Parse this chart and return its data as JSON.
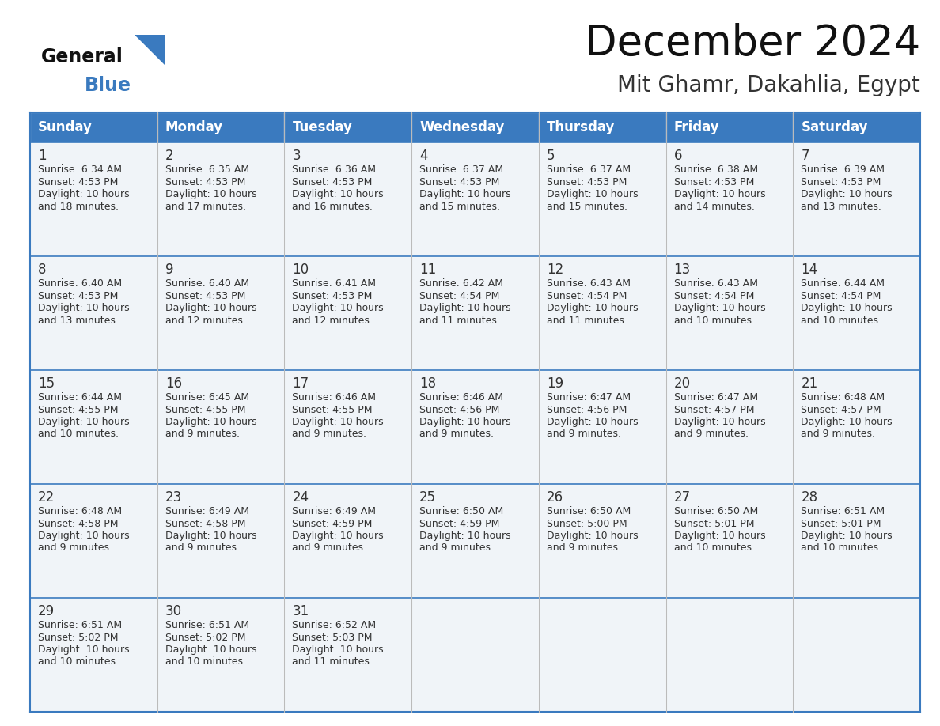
{
  "title": "December 2024",
  "subtitle": "Mit Ghamr, Dakahlia, Egypt",
  "header_color": "#3a7abf",
  "header_text_color": "#ffffff",
  "cell_bg_light": "#f0f4f8",
  "cell_bg_white": "#ffffff",
  "day_number_color": "#333333",
  "info_text_color": "#333333",
  "border_color": "#2e5f8a",
  "separator_color": "#3a7abf",
  "days_of_week": [
    "Sunday",
    "Monday",
    "Tuesday",
    "Wednesday",
    "Thursday",
    "Friday",
    "Saturday"
  ],
  "weeks": [
    [
      {
        "day": 1,
        "sunrise": "6:34 AM",
        "sunset": "4:53 PM",
        "daylight_hours": 10,
        "daylight_minutes": 18
      },
      {
        "day": 2,
        "sunrise": "6:35 AM",
        "sunset": "4:53 PM",
        "daylight_hours": 10,
        "daylight_minutes": 17
      },
      {
        "day": 3,
        "sunrise": "6:36 AM",
        "sunset": "4:53 PM",
        "daylight_hours": 10,
        "daylight_minutes": 16
      },
      {
        "day": 4,
        "sunrise": "6:37 AM",
        "sunset": "4:53 PM",
        "daylight_hours": 10,
        "daylight_minutes": 15
      },
      {
        "day": 5,
        "sunrise": "6:37 AM",
        "sunset": "4:53 PM",
        "daylight_hours": 10,
        "daylight_minutes": 15
      },
      {
        "day": 6,
        "sunrise": "6:38 AM",
        "sunset": "4:53 PM",
        "daylight_hours": 10,
        "daylight_minutes": 14
      },
      {
        "day": 7,
        "sunrise": "6:39 AM",
        "sunset": "4:53 PM",
        "daylight_hours": 10,
        "daylight_minutes": 13
      }
    ],
    [
      {
        "day": 8,
        "sunrise": "6:40 AM",
        "sunset": "4:53 PM",
        "daylight_hours": 10,
        "daylight_minutes": 13
      },
      {
        "day": 9,
        "sunrise": "6:40 AM",
        "sunset": "4:53 PM",
        "daylight_hours": 10,
        "daylight_minutes": 12
      },
      {
        "day": 10,
        "sunrise": "6:41 AM",
        "sunset": "4:53 PM",
        "daylight_hours": 10,
        "daylight_minutes": 12
      },
      {
        "day": 11,
        "sunrise": "6:42 AM",
        "sunset": "4:54 PM",
        "daylight_hours": 10,
        "daylight_minutes": 11
      },
      {
        "day": 12,
        "sunrise": "6:43 AM",
        "sunset": "4:54 PM",
        "daylight_hours": 10,
        "daylight_minutes": 11
      },
      {
        "day": 13,
        "sunrise": "6:43 AM",
        "sunset": "4:54 PM",
        "daylight_hours": 10,
        "daylight_minutes": 10
      },
      {
        "day": 14,
        "sunrise": "6:44 AM",
        "sunset": "4:54 PM",
        "daylight_hours": 10,
        "daylight_minutes": 10
      }
    ],
    [
      {
        "day": 15,
        "sunrise": "6:44 AM",
        "sunset": "4:55 PM",
        "daylight_hours": 10,
        "daylight_minutes": 10
      },
      {
        "day": 16,
        "sunrise": "6:45 AM",
        "sunset": "4:55 PM",
        "daylight_hours": 10,
        "daylight_minutes": 9
      },
      {
        "day": 17,
        "sunrise": "6:46 AM",
        "sunset": "4:55 PM",
        "daylight_hours": 10,
        "daylight_minutes": 9
      },
      {
        "day": 18,
        "sunrise": "6:46 AM",
        "sunset": "4:56 PM",
        "daylight_hours": 10,
        "daylight_minutes": 9
      },
      {
        "day": 19,
        "sunrise": "6:47 AM",
        "sunset": "4:56 PM",
        "daylight_hours": 10,
        "daylight_minutes": 9
      },
      {
        "day": 20,
        "sunrise": "6:47 AM",
        "sunset": "4:57 PM",
        "daylight_hours": 10,
        "daylight_minutes": 9
      },
      {
        "day": 21,
        "sunrise": "6:48 AM",
        "sunset": "4:57 PM",
        "daylight_hours": 10,
        "daylight_minutes": 9
      }
    ],
    [
      {
        "day": 22,
        "sunrise": "6:48 AM",
        "sunset": "4:58 PM",
        "daylight_hours": 10,
        "daylight_minutes": 9
      },
      {
        "day": 23,
        "sunrise": "6:49 AM",
        "sunset": "4:58 PM",
        "daylight_hours": 10,
        "daylight_minutes": 9
      },
      {
        "day": 24,
        "sunrise": "6:49 AM",
        "sunset": "4:59 PM",
        "daylight_hours": 10,
        "daylight_minutes": 9
      },
      {
        "day": 25,
        "sunrise": "6:50 AM",
        "sunset": "4:59 PM",
        "daylight_hours": 10,
        "daylight_minutes": 9
      },
      {
        "day": 26,
        "sunrise": "6:50 AM",
        "sunset": "5:00 PM",
        "daylight_hours": 10,
        "daylight_minutes": 9
      },
      {
        "day": 27,
        "sunrise": "6:50 AM",
        "sunset": "5:01 PM",
        "daylight_hours": 10,
        "daylight_minutes": 10
      },
      {
        "day": 28,
        "sunrise": "6:51 AM",
        "sunset": "5:01 PM",
        "daylight_hours": 10,
        "daylight_minutes": 10
      }
    ],
    [
      {
        "day": 29,
        "sunrise": "6:51 AM",
        "sunset": "5:02 PM",
        "daylight_hours": 10,
        "daylight_minutes": 10
      },
      {
        "day": 30,
        "sunrise": "6:51 AM",
        "sunset": "5:02 PM",
        "daylight_hours": 10,
        "daylight_minutes": 10
      },
      {
        "day": 31,
        "sunrise": "6:52 AM",
        "sunset": "5:03 PM",
        "daylight_hours": 10,
        "daylight_minutes": 11
      },
      null,
      null,
      null,
      null
    ]
  ],
  "background_color": "#ffffff",
  "figwidth": 11.88,
  "figheight": 9.18,
  "dpi": 100
}
